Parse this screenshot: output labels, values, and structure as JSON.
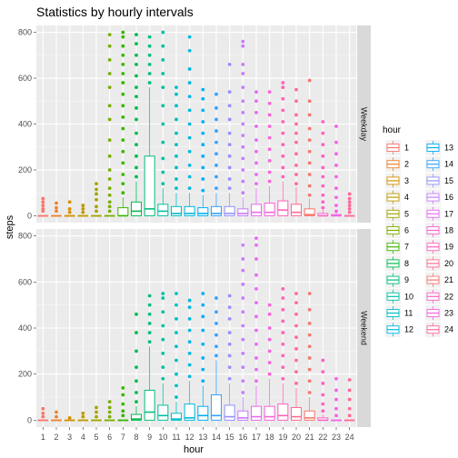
{
  "chart_data": {
    "type": "boxplot",
    "title": "Statistics by hourly intervals",
    "xlabel": "hour",
    "ylabel": "steps",
    "categories": [
      "1",
      "2",
      "3",
      "4",
      "5",
      "6",
      "7",
      "8",
      "9",
      "10",
      "11",
      "12",
      "13",
      "14",
      "15",
      "16",
      "17",
      "18",
      "19",
      "20",
      "21",
      "22",
      "23",
      "24"
    ],
    "y_ticks": [
      0,
      200,
      400,
      600,
      800
    ],
    "ylim": [
      -30,
      830
    ],
    "grid": true,
    "facet_by": "day type",
    "legend": {
      "title": "hour",
      "placement": "right",
      "entries": [
        "1",
        "2",
        "3",
        "4",
        "5",
        "6",
        "7",
        "8",
        "9",
        "10",
        "11",
        "12",
        "13",
        "14",
        "15",
        "16",
        "17",
        "18",
        "19",
        "20",
        "21",
        "22",
        "23",
        "24"
      ]
    },
    "colors": [
      "#F8766D",
      "#EA8331",
      "#D89000",
      "#C09B00",
      "#A3A500",
      "#7CAE00",
      "#39B600",
      "#00BB4E",
      "#00BF7D",
      "#00C1A3",
      "#00BFC4",
      "#00BAE0",
      "#00B0F6",
      "#35A2FF",
      "#9590FF",
      "#C77CFF",
      "#E76BF3",
      "#FA62DB",
      "#FF62BC",
      "#FF6C91",
      "#F8766D",
      "#FF61C3",
      "#F564E3",
      "#FF6A98"
    ],
    "panels": [
      {
        "strip": "Weekday",
        "boxes": [
          {
            "q1": 0,
            "median": 0,
            "q3": 0,
            "whisker_high": 0,
            "outliers": [
              20,
              30,
              45,
              60,
              75
            ]
          },
          {
            "q1": 0,
            "median": 0,
            "q3": 0,
            "whisker_high": 0,
            "outliers": [
              20,
              35,
              55
            ]
          },
          {
            "q1": 0,
            "median": 0,
            "q3": 0,
            "whisker_high": 0,
            "outliers": [
              15,
              30,
              60
            ]
          },
          {
            "q1": 0,
            "median": 0,
            "q3": 0,
            "whisker_high": 0,
            "outliers": [
              15,
              30,
              45
            ]
          },
          {
            "q1": 0,
            "median": 0,
            "q3": 0,
            "whisker_high": 0,
            "outliers": [
              20,
              40,
              70,
              95,
              115,
              140
            ]
          },
          {
            "q1": 0,
            "median": 0,
            "q3": 0,
            "whisker_high": 0,
            "outliers": [
              20,
              40,
              60,
              90,
              120,
              160,
              200,
              260,
              330,
              420,
              480,
              560,
              620,
              680,
              740,
              790
            ]
          },
          {
            "q1": 0,
            "median": 0,
            "q3": 35,
            "whisker_high": 80,
            "outliers": [
              100,
              140,
              180,
              230,
              280,
              330,
              380,
              430,
              480,
              530,
              580,
              620,
              660,
              700,
              740,
              780,
              800
            ]
          },
          {
            "q1": 0,
            "median": 20,
            "q3": 60,
            "whisker_high": 150,
            "outliers": [
              170,
              210,
              260,
              310,
              360,
              420,
              470,
              520,
              560,
              610,
              660,
              700,
              750,
              790
            ]
          },
          {
            "q1": 0,
            "median": 30,
            "q3": 260,
            "whisker_high": 560,
            "outliers": [
              580,
              620,
              660,
              700,
              740,
              780
            ]
          },
          {
            "q1": 0,
            "median": 20,
            "q3": 50,
            "whisker_high": 120,
            "outliers": [
              140,
              190,
              250,
              320,
              400,
              480,
              560,
              620,
              680,
              740,
              800
            ]
          },
          {
            "q1": 0,
            "median": 10,
            "q3": 40,
            "whisker_high": 100,
            "outliers": [
              120,
              160,
              210,
              260,
              310,
              360,
              420,
              480,
              530,
              560
            ]
          },
          {
            "q1": 0,
            "median": 10,
            "q3": 40,
            "whisker_high": 100,
            "outliers": [
              120,
              170,
              220,
              280,
              340,
              400,
              460,
              520,
              580,
              640,
              720,
              780
            ]
          },
          {
            "q1": 0,
            "median": 10,
            "q3": 35,
            "whisker_high": 90,
            "outliers": [
              110,
              160,
              210,
              260,
              310,
              360,
              410,
              460,
              510,
              550
            ]
          },
          {
            "q1": 0,
            "median": 10,
            "q3": 40,
            "whisker_high": 100,
            "outliers": [
              120,
              170,
              220,
              270,
              320,
              370,
              420,
              470,
              530
            ]
          },
          {
            "q1": 0,
            "median": 10,
            "q3": 40,
            "whisker_high": 100,
            "outliers": [
              120,
              160,
              210,
              260,
              310,
              360,
              420,
              480,
              540,
              660
            ]
          },
          {
            "q1": 0,
            "median": 10,
            "q3": 30,
            "whisker_high": 80,
            "outliers": [
              100,
              150,
              200,
              250,
              300,
              350,
              400,
              450,
              500,
              560,
              620,
              660,
              740,
              760
            ]
          },
          {
            "q1": 0,
            "median": 15,
            "q3": 50,
            "whisker_high": 120,
            "outliers": [
              140,
              180,
              230,
              280,
              330,
              390,
              450,
              500,
              540
            ]
          },
          {
            "q1": 0,
            "median": 15,
            "q3": 55,
            "whisker_high": 130,
            "outliers": [
              150,
              190,
              240,
              290,
              340,
              390,
              440,
              490,
              540
            ]
          },
          {
            "q1": 0,
            "median": 25,
            "q3": 65,
            "whisker_high": 150,
            "outliers": [
              170,
              210,
              260,
              310,
              360,
              410,
              460,
              510,
              560,
              580
            ]
          },
          {
            "q1": 0,
            "median": 15,
            "q3": 50,
            "whisker_high": 125,
            "outliers": [
              140,
              180,
              220,
              270,
              320,
              360,
              400,
              440,
              500,
              550
            ]
          },
          {
            "q1": 0,
            "median": 5,
            "q3": 30,
            "whisker_high": 75,
            "outliers": [
              90,
              130,
              180,
              230,
              280,
              330,
              380,
              440,
              500,
              590
            ]
          },
          {
            "q1": 0,
            "median": 0,
            "q3": 10,
            "whisker_high": 25,
            "outliers": [
              35,
              60,
              90,
              130,
              170,
              210,
              260,
              310,
              360,
              410
            ]
          },
          {
            "q1": 0,
            "median": 0,
            "q3": 5,
            "whisker_high": 12,
            "outliers": [
              20,
              45,
              80,
              120,
              170,
              220,
              270,
              320,
              390
            ]
          },
          {
            "q1": 0,
            "median": 0,
            "q3": 0,
            "whisker_high": 0,
            "outliers": [
              15,
              30,
              45,
              60,
              75,
              95
            ]
          }
        ]
      },
      {
        "strip": "Weekend",
        "boxes": [
          {
            "q1": 0,
            "median": 0,
            "q3": 0,
            "whisker_high": 0,
            "outliers": [
              15,
              30,
              50
            ]
          },
          {
            "q1": 0,
            "median": 0,
            "q3": 0,
            "whisker_high": 0,
            "outliers": [
              15,
              35
            ]
          },
          {
            "q1": 0,
            "median": 0,
            "q3": 0,
            "whisker_high": 0,
            "outliers": [
              10
            ]
          },
          {
            "q1": 0,
            "median": 0,
            "q3": 0,
            "whisker_high": 0,
            "outliers": [
              15,
              30
            ]
          },
          {
            "q1": 0,
            "median": 0,
            "q3": 0,
            "whisker_high": 0,
            "outliers": [
              15,
              35,
              55
            ]
          },
          {
            "q1": 0,
            "median": 0,
            "q3": 0,
            "whisker_high": 0,
            "outliers": [
              15,
              35,
              55,
              80
            ]
          },
          {
            "q1": 0,
            "median": 0,
            "q3": 0,
            "whisker_high": 0,
            "outliers": [
              20,
              40,
              70,
              110,
              140
            ]
          },
          {
            "q1": 0,
            "median": 5,
            "q3": 25,
            "whisker_high": 60,
            "outliers": [
              80,
              120,
              170,
              230,
              300,
              380,
              460
            ]
          },
          {
            "q1": 0,
            "median": 35,
            "q3": 130,
            "whisker_high": 320,
            "outliers": [
              340,
              380,
              420,
              460,
              500,
              540
            ]
          },
          {
            "q1": 0,
            "median": 20,
            "q3": 65,
            "whisker_high": 160,
            "outliers": [
              180,
              230,
              290,
              350,
              410,
              470,
              530,
              550
            ]
          },
          {
            "q1": 0,
            "median": 5,
            "q3": 30,
            "whisker_high": 80,
            "outliers": [
              100,
              150,
              200,
              260,
              320,
              380,
              440,
              500,
              550
            ]
          },
          {
            "q1": 0,
            "median": 10,
            "q3": 70,
            "whisker_high": 170,
            "outliers": [
              190,
              240,
              290,
              340,
              390,
              440,
              490,
              520
            ]
          },
          {
            "q1": 0,
            "median": 20,
            "q3": 60,
            "whisker_high": 150,
            "outliers": [
              170,
              220,
              270,
              330,
              390,
              450,
              500,
              550
            ]
          },
          {
            "q1": 0,
            "median": 20,
            "q3": 110,
            "whisker_high": 260,
            "outliers": [
              280,
              320,
              370,
              420,
              470,
              530
            ]
          },
          {
            "q1": 0,
            "median": 15,
            "q3": 65,
            "whisker_high": 160,
            "outliers": [
              180,
              230,
              280,
              330,
              380,
              440,
              490,
              540
            ]
          },
          {
            "q1": 0,
            "median": 10,
            "q3": 40,
            "whisker_high": 100,
            "outliers": [
              120,
              170,
              230,
              290,
              350,
              410,
              470,
              530,
              590,
              650,
              700,
              760
            ]
          },
          {
            "q1": 0,
            "median": 15,
            "q3": 60,
            "whisker_high": 150,
            "outliers": [
              170,
              220,
              270,
              330,
              390,
              450,
              510,
              570,
              630,
              700,
              760,
              790
            ]
          },
          {
            "q1": 0,
            "median": 15,
            "q3": 60,
            "whisker_high": 180,
            "outliers": [
              200,
              250,
              300,
              350,
              400,
              460,
              500
            ]
          },
          {
            "q1": 0,
            "median": 20,
            "q3": 70,
            "whisker_high": 160,
            "outliers": [
              180,
              230,
              280,
              330,
              380,
              430,
              480,
              530,
              570
            ]
          },
          {
            "q1": 0,
            "median": 15,
            "q3": 55,
            "whisker_high": 140,
            "outliers": [
              160,
              210,
              260,
              310,
              360,
              410,
              460,
              510,
              550
            ]
          },
          {
            "q1": 0,
            "median": 10,
            "q3": 40,
            "whisker_high": 100,
            "outliers": [
              120,
              170,
              220,
              270,
              320,
              370,
              420,
              480,
              550
            ]
          },
          {
            "q1": 0,
            "median": 0,
            "q3": 10,
            "whisker_high": 25,
            "outliers": [
              40,
              70,
              110,
              160,
              210,
              260
            ]
          },
          {
            "q1": 0,
            "median": 0,
            "q3": 0,
            "whisker_high": 0,
            "outliers": [
              20,
              50,
              90,
              130,
              180
            ]
          },
          {
            "q1": 0,
            "median": 0,
            "q3": 0,
            "whisker_high": 0,
            "outliers": [
              20,
              50,
              90,
              130,
              175
            ]
          }
        ]
      }
    ]
  }
}
